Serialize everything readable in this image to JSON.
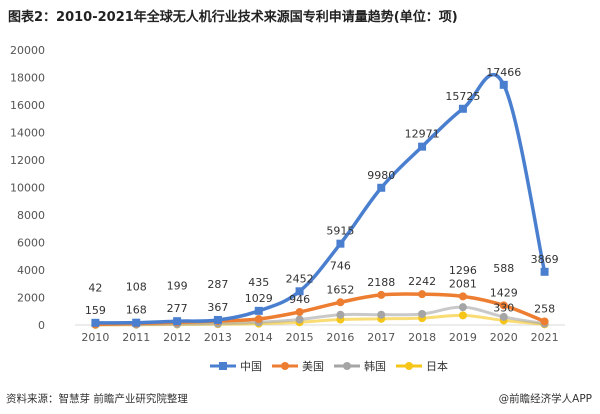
{
  "chart_data": {
    "type": "line",
    "title": "图表2：2010-2021年全球无人机行业技术来源国专利申请量趋势(单位：项)",
    "categories": [
      "2010",
      "2011",
      "2012",
      "2013",
      "2014",
      "2015",
      "2016",
      "2017",
      "2018",
      "2019",
      "2020",
      "2021"
    ],
    "ylim": [
      0,
      20000
    ],
    "yticks": [
      "0",
      "2000",
      "4000",
      "6000",
      "8000",
      "10000",
      "12000",
      "14000",
      "16000",
      "18000",
      "20000"
    ],
    "legend_position": "bottom",
    "series": [
      {
        "name": "中国",
        "color": "#4a7fd0",
        "marker": "square",
        "values": [
          159,
          168,
          277,
          367,
          1029,
          2452,
          5915,
          9980,
          12971,
          15725,
          17466,
          3869
        ],
        "labels": [
          "159",
          "168",
          "277",
          "367",
          "1029",
          "2452",
          "5915",
          "9980",
          "12971",
          "15725",
          "17466",
          "3869"
        ]
      },
      {
        "name": "美国",
        "color": "#ed7d31",
        "marker": "circle",
        "values": [
          42,
          108,
          199,
          287,
          435,
          946,
          1652,
          2188,
          2242,
          2081,
          1429,
          258
        ],
        "labels": [
          "42",
          "108",
          "199",
          "287",
          "435",
          "946",
          "1652",
          "2188",
          "2242",
          "2081",
          "1429",
          "258"
        ]
      },
      {
        "name": "韩国",
        "color": "#a5a5a5",
        "marker": "circle",
        "values": [
          20,
          30,
          60,
          100,
          200,
          400,
          746,
          750,
          800,
          1296,
          588,
          100
        ],
        "labels": [
          "",
          "",
          "",
          "",
          "",
          "",
          "746",
          "",
          "",
          "1296",
          "588",
          ""
        ]
      },
      {
        "name": "日本",
        "color": "#f5c518",
        "marker": "circle",
        "values": [
          10,
          20,
          40,
          60,
          100,
          200,
          400,
          450,
          500,
          700,
          330,
          50
        ],
        "labels": [
          "",
          "",
          "",
          "",
          "",
          "",
          "",
          "",
          "",
          "",
          "330",
          ""
        ]
      }
    ]
  },
  "source": "资料来源：智慧芽 前瞻产业研究院整理",
  "brand": "@前瞻经济学人APP"
}
